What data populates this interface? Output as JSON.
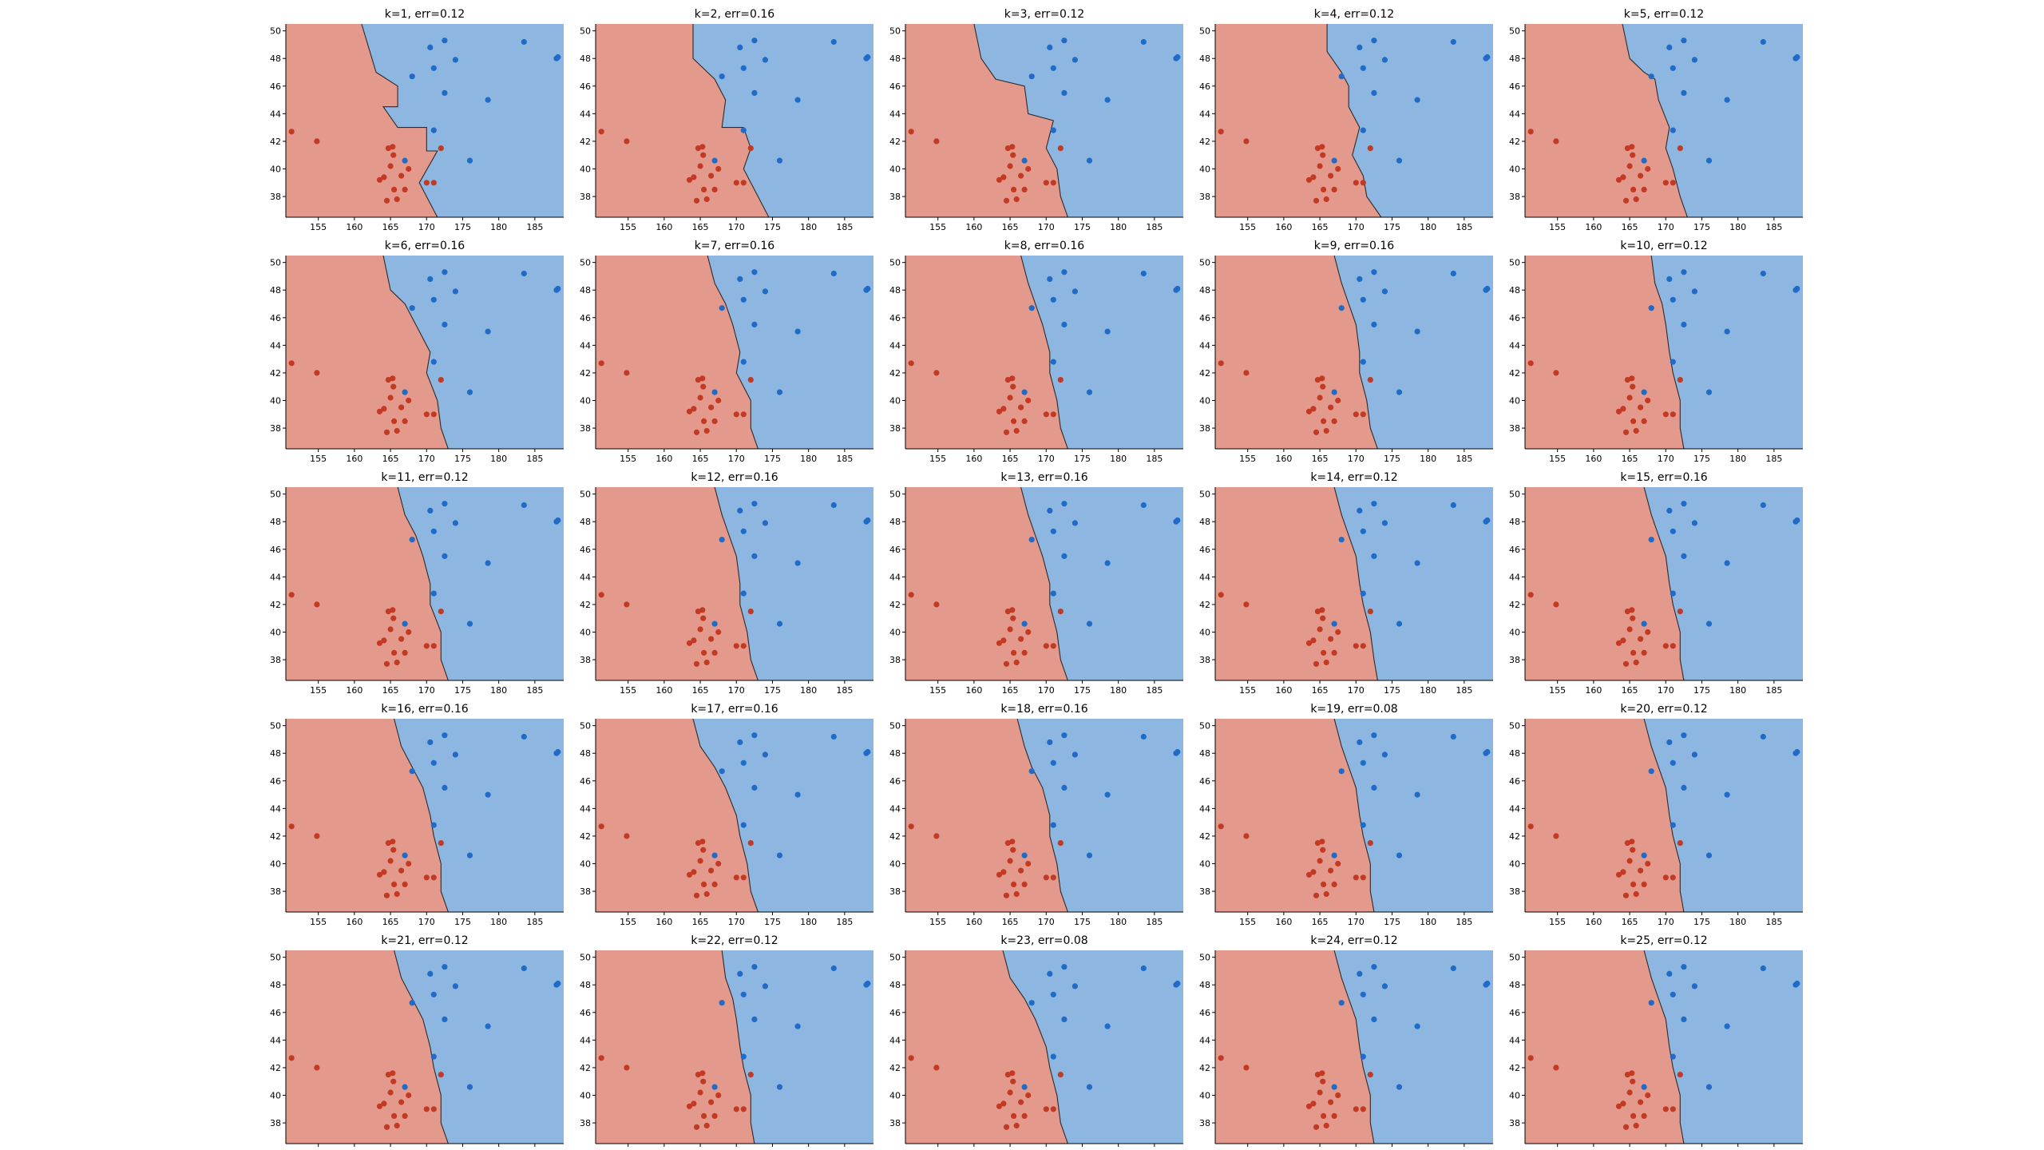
{
  "chart_data": {
    "type": "scatter",
    "subtype": "knn-decision-boundary-grid",
    "grid": {
      "rows": 5,
      "cols": 5
    },
    "xlim": [
      150.5,
      189
    ],
    "ylim": [
      36.5,
      50.5
    ],
    "xticks": [
      "155",
      "160",
      "165",
      "170",
      "175",
      "180",
      "185"
    ],
    "yticks": [
      "38",
      "40",
      "42",
      "44",
      "46",
      "48",
      "50"
    ],
    "colors": {
      "region_red": "#e39a8d",
      "region_blue": "#8db7e1",
      "point_red": "#c23a24",
      "point_blue": "#1f6bc7",
      "boundary": "#2b2b2b"
    },
    "points": {
      "red": [
        [
          151.3,
          42.7
        ],
        [
          154.8,
          42.0
        ],
        [
          164.1,
          39.4
        ],
        [
          164.5,
          37.7
        ],
        [
          164.7,
          41.5
        ],
        [
          165.0,
          40.2
        ],
        [
          165.3,
          41.6
        ],
        [
          165.4,
          41.0
        ],
        [
          165.5,
          38.5
        ],
        [
          165.9,
          37.8
        ],
        [
          166.5,
          39.5
        ],
        [
          167.0,
          38.5
        ],
        [
          167.5,
          40.0
        ],
        [
          170.0,
          39.0
        ],
        [
          171.0,
          39.0
        ],
        [
          172.0,
          41.5
        ],
        [
          163.5,
          39.2
        ]
      ],
      "blue": [
        [
          168.0,
          46.7
        ],
        [
          170.5,
          48.8
        ],
        [
          171.0,
          47.3
        ],
        [
          171.0,
          42.8
        ],
        [
          172.5,
          49.3
        ],
        [
          172.5,
          45.5
        ],
        [
          174.0,
          47.9
        ],
        [
          176.0,
          40.6
        ],
        [
          178.5,
          45.0
        ],
        [
          183.5,
          49.2
        ],
        [
          188.0,
          48.0
        ],
        [
          188.2,
          48.1
        ],
        [
          167.0,
          40.6
        ]
      ]
    },
    "panels": [
      {
        "title": "k=1, err=0.12",
        "boundary": [
          [
            161,
            50.5
          ],
          [
            163,
            47
          ],
          [
            166,
            46
          ],
          [
            166,
            44.5
          ],
          [
            164,
            44.5
          ],
          [
            166,
            43
          ],
          [
            170,
            43
          ],
          [
            170,
            41.3
          ],
          [
            171.5,
            41.3
          ],
          [
            169,
            39
          ],
          [
            171.5,
            36.5
          ]
        ]
      },
      {
        "title": "k=2, err=0.16",
        "boundary": [
          [
            164,
            50.5
          ],
          [
            164,
            48
          ],
          [
            166,
            47
          ],
          [
            167,
            46.5
          ],
          [
            168.5,
            45
          ],
          [
            168,
            43
          ],
          [
            171,
            43
          ],
          [
            172,
            41.5
          ],
          [
            171,
            40
          ],
          [
            173,
            38
          ],
          [
            174.5,
            36.5
          ]
        ]
      },
      {
        "title": "k=3, err=0.12",
        "boundary": [
          [
            160,
            50.5
          ],
          [
            161,
            48
          ],
          [
            163,
            46.5
          ],
          [
            167,
            46
          ],
          [
            167.5,
            44
          ],
          [
            171,
            43.5
          ],
          [
            170,
            41.5
          ],
          [
            171.5,
            40
          ],
          [
            172,
            38
          ],
          [
            173,
            36.5
          ]
        ]
      },
      {
        "title": "k=4, err=0.12",
        "boundary": [
          [
            166,
            50.5
          ],
          [
            166,
            48.5
          ],
          [
            168,
            47
          ],
          [
            169,
            46
          ],
          [
            169,
            44.5
          ],
          [
            170.5,
            43
          ],
          [
            169.5,
            41
          ],
          [
            171,
            39.5
          ],
          [
            171.5,
            38
          ],
          [
            173.5,
            36.5
          ]
        ]
      },
      {
        "title": "k=5, err=0.12",
        "boundary": [
          [
            164,
            50.5
          ],
          [
            165,
            48
          ],
          [
            167,
            47
          ],
          [
            168.5,
            46.5
          ],
          [
            169,
            45
          ],
          [
            170.5,
            43
          ],
          [
            170,
            41.5
          ],
          [
            171,
            40
          ],
          [
            172,
            38
          ],
          [
            173,
            36.5
          ]
        ]
      },
      {
        "title": "k=6, err=0.16",
        "boundary": [
          [
            164,
            50.5
          ],
          [
            165,
            48
          ],
          [
            167,
            47
          ],
          [
            168.5,
            45.5
          ],
          [
            170.5,
            43.5
          ],
          [
            170,
            42
          ],
          [
            171.5,
            40
          ],
          [
            172,
            38
          ],
          [
            173,
            36.5
          ]
        ]
      },
      {
        "title": "k=7, err=0.16",
        "boundary": [
          [
            166,
            50.5
          ],
          [
            167,
            48.5
          ],
          [
            168.5,
            47
          ],
          [
            169.5,
            45.5
          ],
          [
            170.5,
            43.5
          ],
          [
            170,
            42
          ],
          [
            172,
            40
          ],
          [
            172,
            38
          ],
          [
            173,
            36.5
          ]
        ]
      },
      {
        "title": "k=8, err=0.16",
        "boundary": [
          [
            166.5,
            50.5
          ],
          [
            167.5,
            48.5
          ],
          [
            168.5,
            47
          ],
          [
            169.5,
            45.5
          ],
          [
            170.5,
            43.5
          ],
          [
            170.5,
            42
          ],
          [
            171.5,
            40
          ],
          [
            172,
            38
          ],
          [
            173,
            36.5
          ]
        ]
      },
      {
        "title": "k=9, err=0.16",
        "boundary": [
          [
            167,
            50.5
          ],
          [
            168,
            48.5
          ],
          [
            169,
            47
          ],
          [
            170,
            45.5
          ],
          [
            170.5,
            43.5
          ],
          [
            170.5,
            42
          ],
          [
            171.5,
            40
          ],
          [
            172,
            38
          ],
          [
            173,
            36.5
          ]
        ]
      },
      {
        "title": "k=10, err=0.12",
        "boundary": [
          [
            168,
            50.5
          ],
          [
            168.5,
            48.5
          ],
          [
            169.5,
            47
          ],
          [
            170,
            45.5
          ],
          [
            170.5,
            43.5
          ],
          [
            171,
            42
          ],
          [
            172,
            40
          ],
          [
            172,
            38
          ],
          [
            172.5,
            36.5
          ]
        ]
      },
      {
        "title": "k=11, err=0.12",
        "boundary": [
          [
            166,
            50.5
          ],
          [
            167,
            48.5
          ],
          [
            168.5,
            47
          ],
          [
            169.5,
            45.5
          ],
          [
            170.5,
            43.5
          ],
          [
            170.5,
            42
          ],
          [
            172,
            40
          ],
          [
            172,
            38
          ],
          [
            173,
            36.5
          ]
        ]
      },
      {
        "title": "k=12, err=0.16",
        "boundary": [
          [
            167,
            50.5
          ],
          [
            168,
            48.5
          ],
          [
            169,
            47
          ],
          [
            170,
            45.5
          ],
          [
            170.5,
            43.5
          ],
          [
            170.5,
            42
          ],
          [
            171.5,
            40
          ],
          [
            172,
            38
          ],
          [
            173,
            36.5
          ]
        ]
      },
      {
        "title": "k=13, err=0.16",
        "boundary": [
          [
            166.5,
            50.5
          ],
          [
            167.5,
            48.5
          ],
          [
            168.5,
            47
          ],
          [
            169.5,
            45.5
          ],
          [
            170.5,
            43.5
          ],
          [
            170.5,
            42
          ],
          [
            171.5,
            40
          ],
          [
            172,
            38
          ],
          [
            173,
            36.5
          ]
        ]
      },
      {
        "title": "k=14, err=0.12",
        "boundary": [
          [
            167,
            50.5
          ],
          [
            168,
            48.5
          ],
          [
            169,
            47
          ],
          [
            170,
            45.5
          ],
          [
            170.5,
            43.5
          ],
          [
            171,
            42
          ],
          [
            172,
            40
          ],
          [
            172.5,
            38
          ],
          [
            173,
            36.5
          ]
        ]
      },
      {
        "title": "k=15, err=0.16",
        "boundary": [
          [
            167,
            50.5
          ],
          [
            168,
            48.5
          ],
          [
            169,
            47
          ],
          [
            170,
            45.5
          ],
          [
            170.5,
            43.5
          ],
          [
            171,
            42
          ],
          [
            172,
            40
          ],
          [
            172,
            38
          ],
          [
            172.5,
            36.5
          ]
        ]
      },
      {
        "title": "k=16, err=0.16",
        "boundary": [
          [
            165.5,
            50.5
          ],
          [
            166.5,
            48.5
          ],
          [
            168,
            47
          ],
          [
            169.5,
            45.5
          ],
          [
            170.5,
            43.5
          ],
          [
            171,
            42
          ],
          [
            172,
            40
          ],
          [
            172,
            38
          ],
          [
            173,
            36.5
          ]
        ]
      },
      {
        "title": "k=17, err=0.16",
        "boundary": [
          [
            164,
            50.5
          ],
          [
            165,
            48.5
          ],
          [
            167,
            47
          ],
          [
            168.5,
            45.5
          ],
          [
            170,
            43.5
          ],
          [
            170.5,
            42
          ],
          [
            171.5,
            40
          ],
          [
            172,
            38
          ],
          [
            173,
            36.5
          ]
        ]
      },
      {
        "title": "k=18, err=0.16",
        "boundary": [
          [
            166,
            50.5
          ],
          [
            167,
            48.5
          ],
          [
            168,
            47
          ],
          [
            169.5,
            45.5
          ],
          [
            170.5,
            43.5
          ],
          [
            170.5,
            42
          ],
          [
            171.5,
            40
          ],
          [
            172,
            38
          ],
          [
            173,
            36.5
          ]
        ]
      },
      {
        "title": "k=19, err=0.08",
        "boundary": [
          [
            167,
            50.5
          ],
          [
            168,
            48.5
          ],
          [
            169,
            47
          ],
          [
            170,
            45.5
          ],
          [
            170.5,
            43.5
          ],
          [
            171,
            42
          ],
          [
            172,
            40
          ],
          [
            172,
            38
          ],
          [
            172.5,
            36.5
          ]
        ]
      },
      {
        "title": "k=20, err=0.12",
        "boundary": [
          [
            167,
            50.5
          ],
          [
            168,
            48.5
          ],
          [
            169,
            47
          ],
          [
            170,
            45.5
          ],
          [
            170.5,
            43.5
          ],
          [
            171,
            42
          ],
          [
            172,
            40
          ],
          [
            172,
            38
          ],
          [
            172.5,
            36.5
          ]
        ]
      },
      {
        "title": "k=21, err=0.12",
        "boundary": [
          [
            165.5,
            50.5
          ],
          [
            166.5,
            48.5
          ],
          [
            168,
            47
          ],
          [
            169.5,
            45.5
          ],
          [
            170.5,
            43.5
          ],
          [
            171,
            42
          ],
          [
            172,
            40
          ],
          [
            172,
            38
          ],
          [
            173,
            36.5
          ]
        ]
      },
      {
        "title": "k=22, err=0.12",
        "boundary": [
          [
            168,
            50.5
          ],
          [
            168.5,
            48.5
          ],
          [
            169.5,
            47
          ],
          [
            170,
            45.5
          ],
          [
            170.5,
            43.5
          ],
          [
            171,
            42
          ],
          [
            172,
            40
          ],
          [
            172,
            38
          ],
          [
            172.5,
            36.5
          ]
        ]
      },
      {
        "title": "k=23, err=0.08",
        "boundary": [
          [
            164,
            50.5
          ],
          [
            165,
            48.5
          ],
          [
            167,
            47
          ],
          [
            168.5,
            45.5
          ],
          [
            170,
            43.5
          ],
          [
            170.5,
            42
          ],
          [
            171.5,
            40
          ],
          [
            172,
            38
          ],
          [
            173,
            36.5
          ]
        ]
      },
      {
        "title": "k=24, err=0.12",
        "boundary": [
          [
            167,
            50.5
          ],
          [
            168,
            48.5
          ],
          [
            169,
            47
          ],
          [
            170,
            45.5
          ],
          [
            170.5,
            43.5
          ],
          [
            171,
            42
          ],
          [
            172,
            40
          ],
          [
            172,
            38
          ],
          [
            172.5,
            36.5
          ]
        ]
      },
      {
        "title": "k=25, err=0.12",
        "boundary": [
          [
            167,
            50.5
          ],
          [
            168,
            48.5
          ],
          [
            169,
            47
          ],
          [
            170,
            45.5
          ],
          [
            170.5,
            43.5
          ],
          [
            171,
            42
          ],
          [
            172,
            40
          ],
          [
            172,
            38
          ],
          [
            172.5,
            36.5
          ]
        ]
      }
    ]
  }
}
